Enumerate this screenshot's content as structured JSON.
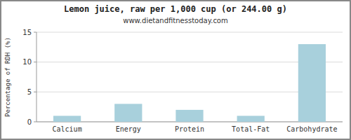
{
  "chart_data": {
    "type": "bar",
    "title": "Lemon juice, raw per 1,000 cup (or 244.00 g)",
    "subtitle": "www.dietandfitnesstoday.com",
    "ylabel": "Percentage of RDH (%)",
    "categories": [
      "Calcium",
      "Energy",
      "Protein",
      "Total-Fat",
      "Carbohydrate"
    ],
    "values": [
      1.0,
      3.0,
      2.0,
      1.0,
      13.0
    ],
    "color": "#a8d0dc",
    "ylim": [
      0,
      15
    ],
    "yticks": [
      0,
      5,
      10,
      15
    ],
    "grid": true
  }
}
